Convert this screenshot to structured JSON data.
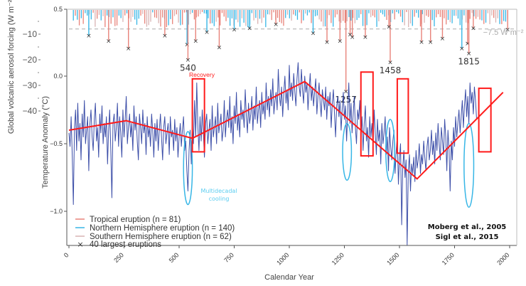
{
  "chart_data": {
    "type": "line",
    "title": "",
    "xlabel": "Calendar Year",
    "ylabel": "Temperature Anomaly (°C)",
    "ylabel_secondary": "Global volcanic aerosol forcing (W m⁻²)",
    "xlim": [
      0,
      2000
    ],
    "ylim": [
      -1.25,
      0.5
    ],
    "xticks": [
      0,
      250,
      500,
      750,
      1000,
      1250,
      1500,
      1750,
      2000
    ],
    "xtick_labels": [
      "0",
      "250",
      "500",
      "750",
      "1000",
      "1250",
      "1500",
      "1750",
      "2000"
    ],
    "yticks": [
      0.5,
      0.0,
      -0.5,
      -1.0
    ],
    "ytick_labels": [
      "0.5",
      "0.0",
      "−0.5",
      "−1.0"
    ],
    "aerosol_ticks": [
      -10,
      -20,
      -30,
      -40
    ],
    "aerosol_tick_labels": [
      "−10",
      "−20",
      "−30",
      "−40"
    ],
    "threshold": {
      "value": -7.5,
      "label": "−7.5 W m⁻²"
    },
    "grid": false,
    "legend_position": "bottom-left",
    "legend": [
      {
        "label": "Tropical eruption (n = 81)",
        "color": "#e8837a",
        "marker": "line"
      },
      {
        "label": "Northern Hemisphere eruption (n = 140)",
        "color": "#37b6e6",
        "marker": "line"
      },
      {
        "label": "Southern Hemisphere eruption (n = 62)",
        "color": "#d9b3b3",
        "marker": "line"
      },
      {
        "label": "40 largest eruptions",
        "color": "#333333",
        "marker": "x"
      }
    ],
    "series": [
      {
        "name": "Temperature anomaly (Moberg et al., 2005)",
        "color": "#1a2f99",
        "x_start": 0,
        "x_step": 5,
        "values": [
          -0.42,
          -0.52,
          -0.3,
          -0.6,
          -0.95,
          -0.38,
          -0.25,
          -0.55,
          -0.2,
          -0.48,
          -0.35,
          -0.62,
          -0.28,
          -0.45,
          -0.18,
          -0.5,
          -0.4,
          -0.3,
          -0.7,
          -0.35,
          -0.25,
          -0.45,
          -0.55,
          -0.32,
          -0.2,
          -0.48,
          -0.38,
          -0.6,
          -0.28,
          -0.42,
          -0.22,
          -0.5,
          -0.35,
          -0.45,
          -0.3,
          -0.65,
          -0.4,
          -0.25,
          -0.55,
          -0.9,
          -0.35,
          -0.28,
          -0.48,
          -0.38,
          -0.2,
          -0.52,
          -0.3,
          -0.42,
          -0.6,
          -0.25,
          -0.45,
          -0.32,
          -0.15,
          -0.5,
          -0.38,
          -0.28,
          -0.45,
          -0.35,
          -0.55,
          -0.22,
          -0.4,
          -0.3,
          -0.48,
          -0.62,
          -0.28,
          -0.38,
          -0.5,
          -0.25,
          -0.42,
          -0.35,
          -0.58,
          -0.3,
          -0.45,
          -0.38,
          -0.52,
          -0.28,
          -0.4,
          -0.6,
          -0.35,
          -0.48,
          -0.32,
          -0.55,
          -0.4,
          -0.28,
          -0.45,
          -0.62,
          -0.38,
          -0.3,
          -0.5,
          -0.42,
          -0.35,
          -0.58,
          -0.3,
          -0.45,
          -0.4,
          -0.55,
          -0.32,
          -0.48,
          -0.38,
          -0.6,
          -0.45,
          -0.35,
          -0.52,
          -0.4,
          -0.3,
          -0.55,
          -0.48,
          -0.7,
          -0.85,
          -0.55,
          -0.4,
          -0.65,
          -0.35,
          -0.5,
          -0.18,
          -0.45,
          -0.05,
          -0.38,
          -0.55,
          -0.3,
          -0.48,
          -0.25,
          -0.42,
          -0.6,
          -0.35,
          -0.28,
          -0.5,
          -0.4,
          -0.32,
          -0.55,
          -0.22,
          -0.45,
          -0.38,
          -0.3,
          -0.5,
          -0.2,
          -0.42,
          -0.35,
          -0.28,
          -0.48,
          -0.4,
          -0.18,
          -0.45,
          -0.32,
          -0.25,
          -0.38,
          -0.15,
          -0.42,
          -0.3,
          -0.5,
          -0.22,
          -0.35,
          -0.12,
          -0.4,
          -0.28,
          -0.45,
          -0.18,
          -0.32,
          -0.25,
          -0.38,
          -0.1,
          -0.3,
          -0.42,
          -0.2,
          -0.35,
          -0.28,
          -0.15,
          -0.4,
          -0.22,
          -0.32,
          -0.08,
          -0.35,
          -0.25,
          -0.18,
          -0.38,
          -0.12,
          -0.28,
          -0.2,
          -0.32,
          -0.05,
          -0.25,
          -0.15,
          -0.3,
          -0.1,
          -0.22,
          -0.02,
          -0.28,
          -0.18,
          -0.12,
          -0.25,
          0.05,
          -0.15,
          -0.22,
          -0.08,
          -0.3,
          -0.12,
          0.0,
          -0.2,
          -0.1,
          -0.25,
          0.08,
          -0.15,
          -0.05,
          -0.18,
          0.02,
          -0.12,
          -0.22,
          -0.02,
          0.1,
          -0.08,
          -0.15,
          0.05,
          -0.1,
          -0.2,
          0.0,
          -0.12,
          -0.05,
          -0.25,
          -0.1,
          0.02,
          -0.18,
          -0.08,
          -0.22,
          -0.12,
          -0.02,
          -0.28,
          -0.15,
          -0.05,
          -0.2,
          -0.3,
          -0.1,
          -0.18,
          -0.25,
          -0.08,
          -0.32,
          -0.15,
          -0.22,
          -0.12,
          -0.38,
          -0.2,
          -0.1,
          -0.28,
          -0.45,
          -0.22,
          -0.15,
          -0.3,
          -0.18,
          -0.4,
          -0.25,
          -0.12,
          -0.32,
          -0.22,
          -0.48,
          -0.28,
          -0.05,
          -0.35,
          -0.2,
          -0.42,
          -0.28,
          -0.15,
          -0.38,
          -0.5,
          -0.25,
          -0.32,
          -0.18,
          -0.45,
          -0.3,
          -0.55,
          -0.35,
          -0.22,
          -0.48,
          -0.38,
          -0.6,
          -0.3,
          -0.45,
          -0.35,
          -0.52,
          -0.25,
          -0.42,
          -0.58,
          -0.32,
          -0.48,
          -0.4,
          -0.65,
          -0.35,
          -0.5,
          -0.42,
          -0.3,
          -0.58,
          -0.45,
          -0.7,
          -0.38,
          -0.52,
          -0.62,
          -0.48,
          -0.4,
          -0.72,
          -0.55,
          -0.45,
          -0.8,
          -0.6,
          -0.5,
          -1.1,
          -0.68,
          -0.55,
          -0.75,
          -0.62,
          -1.25,
          -0.7,
          -0.58,
          -0.85,
          -0.65,
          -0.72,
          -0.6,
          -0.78,
          -0.55,
          -0.68,
          -0.62,
          -0.5,
          -0.72,
          -0.58,
          -0.65,
          -0.48,
          -0.6,
          -0.7,
          -0.52,
          -0.45,
          -0.62,
          -0.55,
          -0.4,
          -0.58,
          -0.48,
          -0.65,
          -0.42,
          -0.55,
          -0.35,
          -0.5,
          -0.62,
          -0.38,
          -0.48,
          -0.58,
          -0.32,
          -0.45,
          -0.7,
          -0.4,
          -0.55,
          -0.85,
          -0.48,
          -0.62,
          -0.38,
          -0.52,
          -0.3,
          -0.45,
          -0.35,
          -0.25,
          -0.42,
          -0.3,
          -0.18,
          -0.38,
          -0.22,
          -0.1,
          -0.3,
          -0.15,
          -0.35,
          -0.05,
          -0.2,
          -0.12,
          -0.28,
          -0.08,
          -0.18,
          -0.32
        ]
      }
    ],
    "trend_line": {
      "name": "Piecewise trend",
      "color": "#ff1a1a",
      "points": [
        [
          0,
          -0.4
        ],
        [
          260,
          -0.33
        ],
        [
          560,
          -0.46
        ],
        [
          1070,
          -0.04
        ],
        [
          1580,
          -0.76
        ],
        [
          1970,
          -0.12
        ]
      ]
    },
    "recovery_boxes": [
      {
        "x0": 560,
        "x1": 615,
        "y0": -0.56,
        "y1": -0.02
      },
      {
        "x0": 1325,
        "x1": 1380,
        "y0": -0.59,
        "y1": 0.03
      },
      {
        "x0": 1490,
        "x1": 1540,
        "y0": -0.57,
        "y1": -0.02
      },
      {
        "x0": 1860,
        "x1": 1915,
        "y0": -0.56,
        "y1": -0.09
      }
    ],
    "cooling_ellipses": [
      {
        "x_center": 540,
        "y_center": -0.68,
        "x_halfwidth": 20,
        "y_halfheight": 0.27
      },
      {
        "x_center": 1262,
        "y_center": -0.56,
        "x_halfwidth": 20,
        "y_halfheight": 0.21
      },
      {
        "x_center": 1458,
        "y_center": -0.55,
        "x_halfwidth": 20,
        "y_halfheight": 0.23
      },
      {
        "x_center": 1815,
        "y_center": -0.66,
        "x_halfwidth": 22,
        "y_halfheight": 0.31
      }
    ],
    "eruptions": [
      {
        "year": 90,
        "forcing": -10.0,
        "type": "NH",
        "largest": true
      },
      {
        "year": 180,
        "forcing": -12.0,
        "type": "Tropical",
        "largest": true
      },
      {
        "year": 270,
        "forcing": -15.0,
        "type": "Tropical",
        "largest": true
      },
      {
        "year": 435,
        "forcing": -10.0,
        "type": "Tropical",
        "largest": true
      },
      {
        "year": 536,
        "forcing": -13.5,
        "type": "NH",
        "largest": true
      },
      {
        "year": 540,
        "forcing": -19.5,
        "type": "Tropical",
        "largest": true
      },
      {
        "year": 575,
        "forcing": -12.0,
        "type": "Tropical",
        "largest": true
      },
      {
        "year": 626,
        "forcing": -8.5,
        "type": "NH",
        "largest": true
      },
      {
        "year": 682,
        "forcing": -14.5,
        "type": "Tropical",
        "largest": true
      },
      {
        "year": 750,
        "forcing": -7.5,
        "type": "NH",
        "largest": true
      },
      {
        "year": 820,
        "forcing": -7.0,
        "type": "NH",
        "largest": true
      },
      {
        "year": 939,
        "forcing": -5.5,
        "type": "Tropical",
        "largest": true
      },
      {
        "year": 1108,
        "forcing": -9.0,
        "type": "NH",
        "largest": true
      },
      {
        "year": 1171,
        "forcing": -12.5,
        "type": "Tropical",
        "largest": true
      },
      {
        "year": 1230,
        "forcing": -12.0,
        "type": "Tropical",
        "largest": true
      },
      {
        "year": 1257,
        "forcing": -32.0,
        "type": "Tropical",
        "largest": true
      },
      {
        "year": 1276,
        "forcing": -9.5,
        "type": "Tropical",
        "largest": true
      },
      {
        "year": 1286,
        "forcing": -10.5,
        "type": "Tropical",
        "largest": true
      },
      {
        "year": 1345,
        "forcing": -10.5,
        "type": "Tropical",
        "largest": true
      },
      {
        "year": 1458,
        "forcing": -20.5,
        "type": "Tropical",
        "largest": true
      },
      {
        "year": 1452,
        "forcing": -6.5,
        "type": "Tropical",
        "largest": true
      },
      {
        "year": 1600,
        "forcing": -12.5,
        "type": "Tropical",
        "largest": true
      },
      {
        "year": 1641,
        "forcing": -12.5,
        "type": "Tropical",
        "largest": true
      },
      {
        "year": 1695,
        "forcing": -11.0,
        "type": "Tropical",
        "largest": true
      },
      {
        "year": 1600,
        "forcing": -5.5,
        "type": "Tropical",
        "largest": false
      },
      {
        "year": 1783,
        "forcing": -15.0,
        "type": "NH",
        "largest": true
      },
      {
        "year": 1809,
        "forcing": -13.0,
        "type": "Tropical",
        "largest": true
      },
      {
        "year": 1815,
        "forcing": -17.0,
        "type": "Tropical",
        "largest": true
      },
      {
        "year": 1835,
        "forcing": -7.0,
        "type": "Tropical",
        "largest": true
      },
      {
        "year": 1991,
        "forcing": -7.5,
        "type": "Tropical",
        "largest": true
      }
    ],
    "eruption_year_labels": [
      {
        "year": 540,
        "label": "540"
      },
      {
        "year": 1257,
        "label": "1257"
      },
      {
        "year": 1458,
        "label": "1458"
      },
      {
        "year": 1815,
        "label": "1815"
      }
    ],
    "annotations": [
      {
        "text": "Recovery",
        "color": "#ff1a1a"
      },
      {
        "text": "Multidecadal",
        "color": "#5ccdf0"
      },
      {
        "text": "cooling",
        "color": "#5ccdf0"
      }
    ],
    "credits": [
      "Moberg et al., 2005",
      "Sigl et al., 2015"
    ]
  },
  "colors": {
    "temperature": "#1a2f99",
    "trend": "#ff1a1a",
    "tropical": "#e8837a",
    "nh": "#37b6e6",
    "sh": "#d9b3b3",
    "cooling": "#37b6e6",
    "axis": "#555555"
  }
}
